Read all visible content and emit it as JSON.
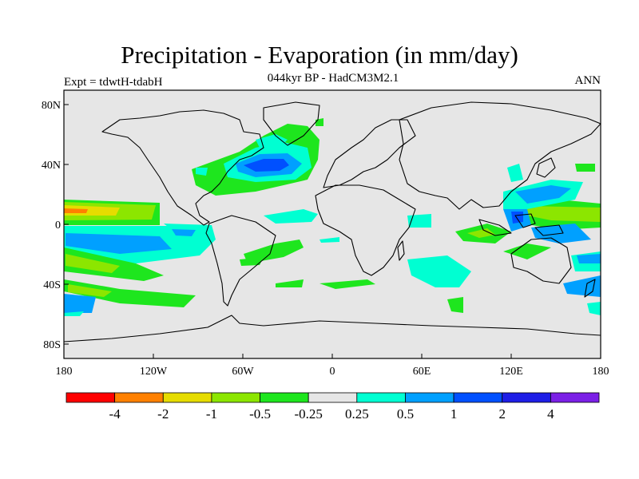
{
  "figure": {
    "title": "Precipitation - Evaporation (in mm/day)",
    "subtitle": "044kyr BP - HadCM3M2.1",
    "left_label": "Expt = tdwtH-tdabH",
    "right_label": "ANN"
  },
  "axes": {
    "lat_ticks": [
      "80N",
      "40N",
      "0",
      "40S",
      "80S"
    ],
    "lon_ticks": [
      "180",
      "120W",
      "60W",
      "0",
      "60E",
      "120E",
      "180"
    ]
  },
  "colorbar": {
    "colors": [
      "#ff0000",
      "#ff8000",
      "#e6dc00",
      "#8ce600",
      "#1ee61e",
      "#e6e6e6",
      "#00ffd2",
      "#00a0ff",
      "#0050ff",
      "#1e1ee6",
      "#7b20e6"
    ],
    "labels": [
      "-4",
      "-2",
      "-1",
      "-0.5",
      "-0.25",
      "0.25",
      "0.5",
      "1",
      "2",
      "4"
    ]
  },
  "map": {
    "background_color": "#e6e6e6",
    "coastline_color": "#000000"
  }
}
